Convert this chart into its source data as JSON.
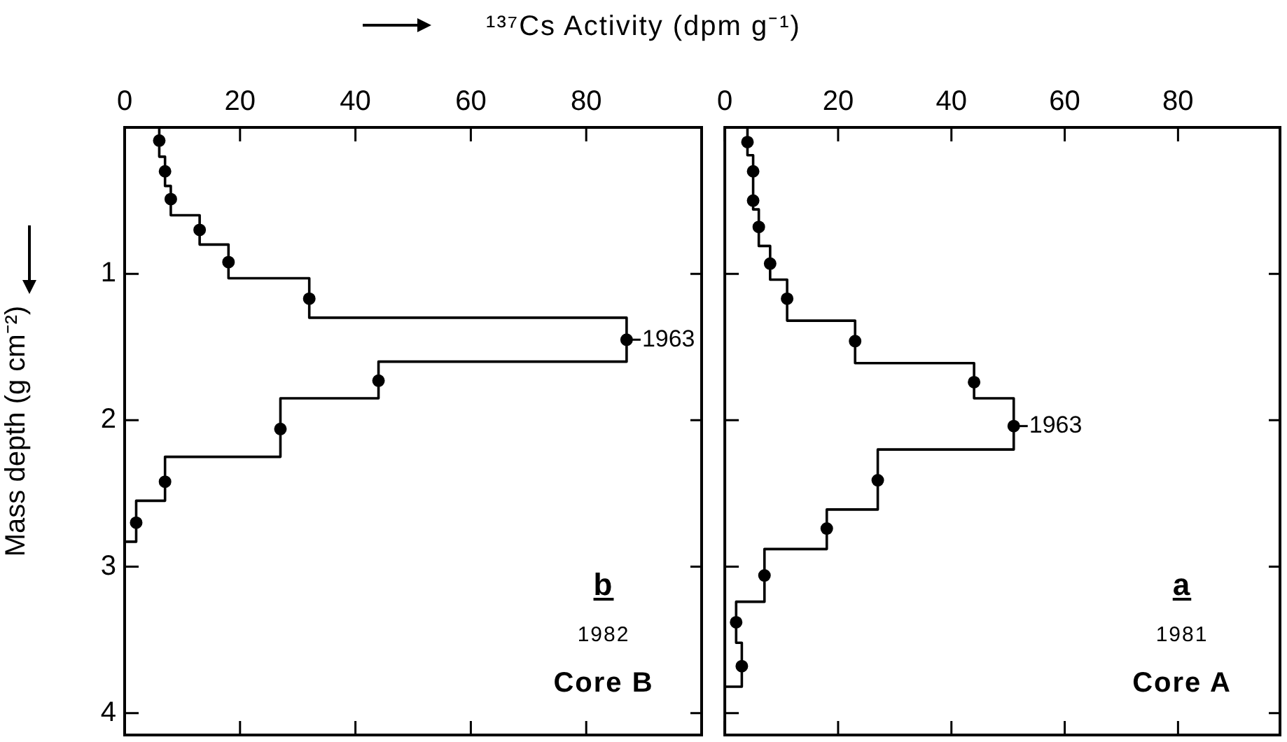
{
  "chart_data": [
    {
      "type": "line",
      "title": "¹³⁷Cs Activity (dpm g⁻¹)",
      "ylabel": "Mass depth (g cm⁻²)",
      "xlim": [
        0,
        100
      ],
      "xticks": [
        0,
        20,
        40,
        60,
        80
      ],
      "ylim": [
        4.15,
        0
      ],
      "yticks": [
        1,
        2,
        3,
        4
      ],
      "grid": false,
      "legend": false,
      "series": [
        {
          "type": "line",
          "marker": "none",
          "color": "#000000",
          "x": [
            6,
            6,
            7,
            7,
            8,
            8,
            13,
            13,
            18,
            18,
            32,
            32,
            87,
            87,
            44,
            44,
            27,
            27,
            7,
            7,
            2,
            2,
            0
          ],
          "values": [
            0,
            0.2,
            0.2,
            0.4,
            0.4,
            0.6,
            0.6,
            0.8,
            0.8,
            1.03,
            1.03,
            1.3,
            1.3,
            1.6,
            1.6,
            1.85,
            1.85,
            2.25,
            2.25,
            2.55,
            2.55,
            2.83,
            2.83
          ]
        },
        {
          "type": "scatter",
          "marker": "circle",
          "color": "#000000",
          "x": [
            6,
            7,
            8,
            13,
            18,
            32,
            87,
            44,
            27,
            7,
            2
          ],
          "values": [
            0.09,
            0.3,
            0.49,
            0.7,
            0.92,
            1.17,
            1.45,
            1.73,
            2.06,
            2.42,
            2.7
          ]
        }
      ],
      "annotations": [
        {
          "text": "1963",
          "x": 87,
          "y": 1.45
        },
        "b",
        "1982",
        "Core B"
      ]
    },
    {
      "type": "line",
      "xlim": [
        0,
        98
      ],
      "xticks": [
        0,
        20,
        40,
        60,
        80
      ],
      "ylim": [
        4.15,
        0
      ],
      "yticks": [
        1,
        2,
        3,
        4
      ],
      "tick_labels": "x",
      "grid": false,
      "legend": false,
      "series": [
        {
          "type": "line",
          "marker": "none",
          "color": "#000000",
          "x": [
            4,
            4,
            5,
            5,
            6,
            6,
            8,
            8,
            11,
            11,
            23,
            23,
            44,
            44,
            51,
            51,
            27,
            27,
            18,
            18,
            7,
            7,
            2,
            2,
            3,
            3,
            0
          ],
          "values": [
            0,
            0.19,
            0.19,
            0.56,
            0.56,
            0.81,
            0.81,
            1.04,
            1.04,
            1.32,
            1.32,
            1.61,
            1.61,
            1.85,
            1.85,
            2.2,
            2.2,
            2.61,
            2.61,
            2.88,
            2.88,
            3.24,
            3.24,
            3.52,
            3.52,
            3.82,
            3.82
          ]
        },
        {
          "type": "scatter",
          "marker": "circle",
          "color": "#000000",
          "x": [
            4,
            5,
            5,
            6,
            8,
            11,
            23,
            44,
            51,
            27,
            18,
            7,
            2,
            3
          ],
          "values": [
            0.1,
            0.3,
            0.5,
            0.68,
            0.93,
            1.17,
            1.46,
            1.74,
            2.04,
            2.41,
            2.74,
            3.06,
            3.38,
            3.68
          ]
        }
      ],
      "annotations": [
        {
          "text": "1963",
          "x": 51,
          "y": 2.04
        },
        "a",
        "1981",
        "Core A"
      ]
    }
  ]
}
